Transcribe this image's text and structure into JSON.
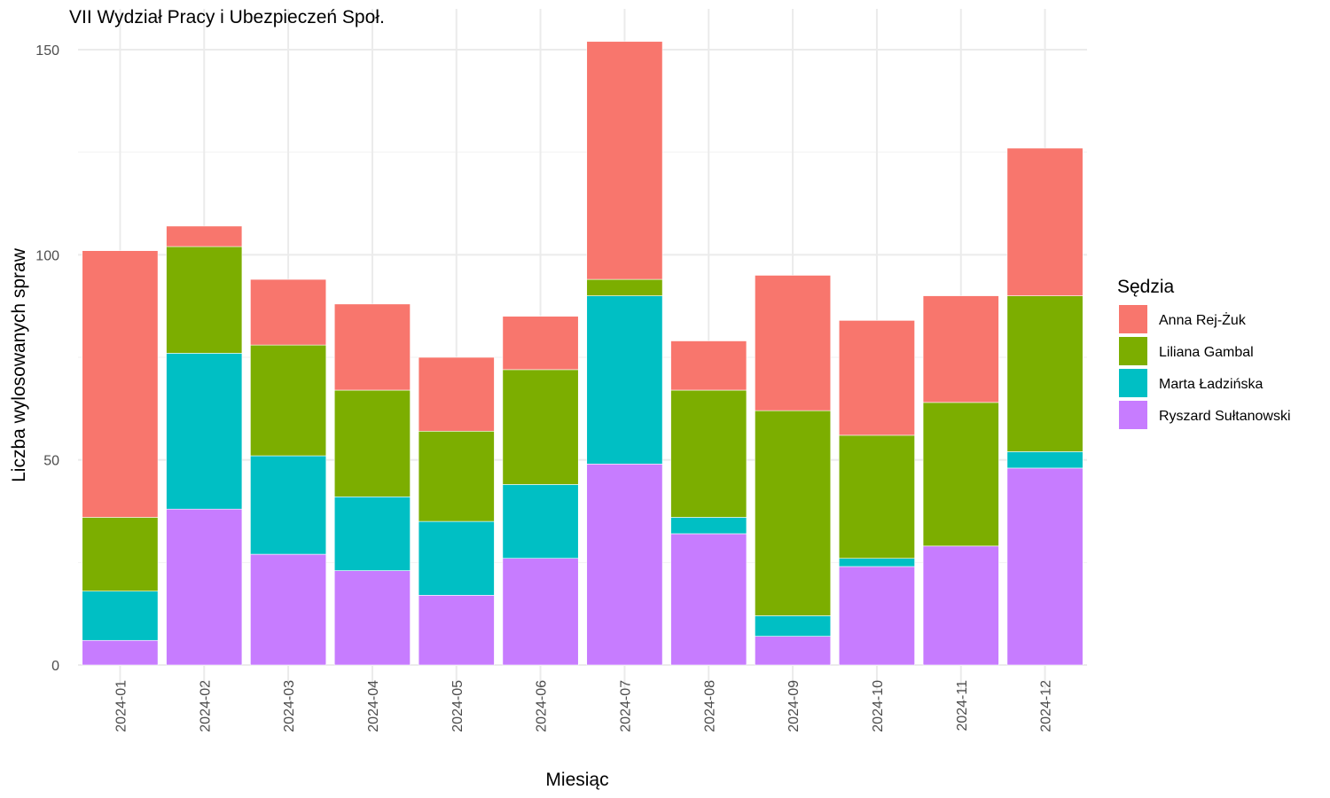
{
  "chart_data": {
    "type": "bar",
    "stacked": true,
    "title": "VII Wydział Pracy i Ubezpieczeń Społ.",
    "xlabel": "Miesiąc",
    "ylabel": "Liczba wylosowanych spraw",
    "ylim": [
      0,
      160
    ],
    "yticks": [
      0,
      50,
      100,
      150
    ],
    "grid": true,
    "legend": {
      "title": "Sędzia",
      "position": "right"
    },
    "categories": [
      "2024-01",
      "2024-02",
      "2024-03",
      "2024-04",
      "2024-05",
      "2024-06",
      "2024-07",
      "2024-08",
      "2024-09",
      "2024-10",
      "2024-11",
      "2024-12"
    ],
    "series": [
      {
        "name": "Ryszard Sułtanowski",
        "color": "#C77CFF",
        "values": [
          6,
          38,
          27,
          23,
          17,
          26,
          49,
          32,
          7,
          24,
          29,
          48
        ]
      },
      {
        "name": "Marta Ładzińska",
        "color": "#00BFC4",
        "values": [
          12,
          38,
          24,
          18,
          18,
          18,
          41,
          4,
          5,
          2,
          0,
          4
        ]
      },
      {
        "name": "Liliana Gambal",
        "color": "#7CAE00",
        "values": [
          18,
          26,
          27,
          26,
          22,
          28,
          4,
          31,
          50,
          30,
          35,
          38
        ]
      },
      {
        "name": "Anna Rej-Żuk",
        "color": "#F8766D",
        "values": [
          65,
          5,
          16,
          21,
          18,
          13,
          58,
          12,
          33,
          28,
          26,
          36
        ]
      }
    ],
    "legend_order": [
      "Anna Rej-Żuk",
      "Liliana Gambal",
      "Marta Ładzińska",
      "Ryszard Sułtanowski"
    ]
  }
}
